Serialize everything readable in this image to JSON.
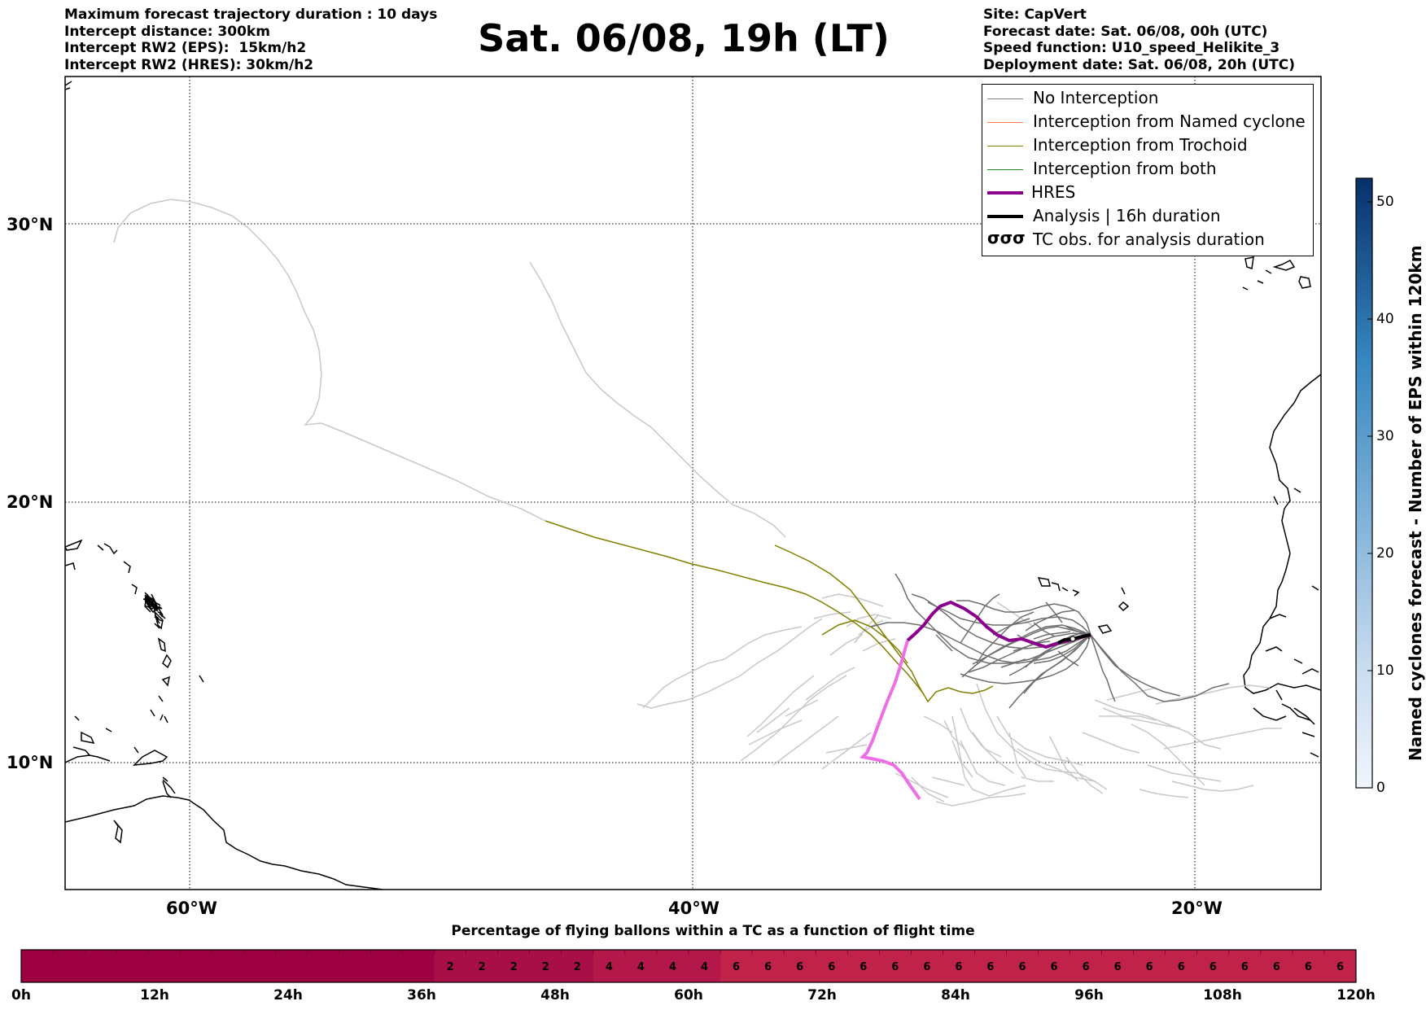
{
  "header_left": [
    "Maximum forecast trajectory duration : 10 days",
    "Intercept distance: 300km",
    "Intercept RW2 (EPS):  15km/h2",
    "Intercept RW2 (HRES): 30km/h2"
  ],
  "title": "Sat. 06/08, 19h (LT)",
  "header_right": [
    "Site: CapVert",
    "Forecast date: Sat. 06/08, 00h (UTC)",
    "Speed function: U10_speed_Helikite_3",
    "Deployment date: Sat. 06/08, 20h (UTC)"
  ],
  "map": {
    "lat_labels": [
      "30°N",
      "20°N",
      "10°N"
    ],
    "lon_labels": [
      "60°W",
      "40°W",
      "20°W"
    ]
  },
  "legend": [
    {
      "label": "No Interception",
      "color": "#808080",
      "icon": "line"
    },
    {
      "label": "Interception from Named cyclone",
      "color": "#ff7f50",
      "icon": "line"
    },
    {
      "label": "Interception from Trochoid",
      "color": "#808000",
      "icon": "line"
    },
    {
      "label": "Interception from both",
      "color": "#228b22",
      "icon": "line"
    },
    {
      "label": "HRES",
      "color": "#8b008b",
      "icon": "thick-line"
    },
    {
      "label": "Analysis | 16h duration",
      "color": "#000000",
      "icon": "thick-line"
    },
    {
      "label": "TC obs. for analysis duration",
      "color": "#000000",
      "icon": "cyclone-symbols"
    }
  ],
  "colorbar": {
    "title": "Named cyclones forecast - Number of EPS within 120km",
    "ticks": [
      "0",
      "10",
      "20",
      "30",
      "40",
      "50"
    ],
    "min": 0,
    "max": 52
  },
  "time_bar": {
    "title": "Percentage of flying ballons within a TC as a function of flight time",
    "tick_labels": [
      "0h",
      "12h",
      "24h",
      "36h",
      "48h",
      "60h",
      "72h",
      "84h",
      "96h",
      "108h",
      "120h"
    ],
    "cell_values": [
      "",
      "",
      "",
      "",
      "",
      "",
      "",
      "",
      "",
      "",
      "",
      "",
      "",
      "2",
      "2",
      "2",
      "2",
      "2",
      "4",
      "4",
      "4",
      "4",
      "6",
      "6",
      "6",
      "6",
      "6",
      "6",
      "6",
      "6",
      "6",
      "6",
      "6",
      "6",
      "6",
      "6",
      "6",
      "6",
      "6",
      "6",
      "6",
      "6"
    ],
    "colors": {
      "0": "#9e0142",
      "2": "#a80f46",
      "4": "#b4184a",
      "6": "#c0224a"
    }
  }
}
